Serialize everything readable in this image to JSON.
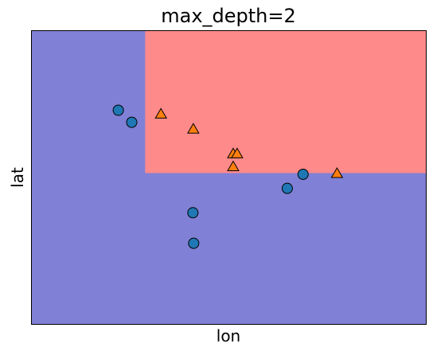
{
  "chart_data": {
    "type": "scatter",
    "title": "max_depth=2",
    "xlabel": "lon",
    "ylabel": "lat",
    "xlim": [
      0,
      100
    ],
    "ylim": [
      0,
      100
    ],
    "xticks": [],
    "yticks": [],
    "grid": false,
    "legend": "none",
    "background_regions": [
      {
        "class": "blue",
        "x_range": [
          0,
          100
        ],
        "y_range": [
          0,
          100
        ],
        "color": "#8080d6"
      },
      {
        "class": "red",
        "x_range": [
          28.8,
          100
        ],
        "y_range": [
          51.5,
          100
        ],
        "color": "#ff8a8a"
      }
    ],
    "series": [
      {
        "marker": "circle",
        "color": "#1f77b4",
        "points": [
          [
            22.0,
            72.9
          ],
          [
            25.4,
            68.8
          ],
          [
            40.9,
            38.0
          ],
          [
            41.1,
            27.6
          ],
          [
            64.8,
            46.3
          ],
          [
            68.8,
            51.1
          ]
        ]
      },
      {
        "marker": "triangle",
        "color": "#ff7f0e",
        "points": [
          [
            32.8,
            71.3
          ],
          [
            41.0,
            66.2
          ],
          [
            51.1,
            57.8
          ],
          [
            52.1,
            57.8
          ],
          [
            51.1,
            53.4
          ],
          [
            77.4,
            51.1
          ]
        ]
      }
    ]
  }
}
